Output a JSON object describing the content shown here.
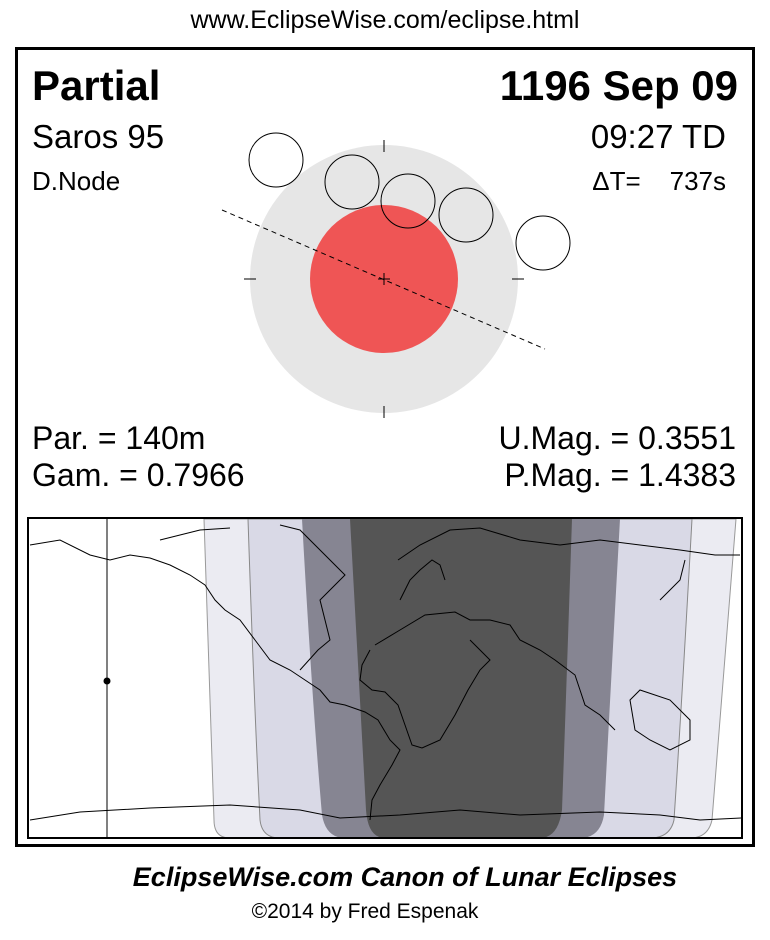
{
  "header_url": "www.EclipseWise.com/eclipse.html",
  "eclipse": {
    "type": "Partial",
    "date": "1196 Sep 09",
    "saros": "Saros  95",
    "time": "09:27 TD",
    "node": "D.Node",
    "delta_t": "ΔT=    737s",
    "partial_duration": "Par. = 140m",
    "gamma": "Gam. = 0.7966",
    "umbral_mag": "U.Mag. = 0.3551",
    "penumbral_mag": "P.Mag. = 1.4383"
  },
  "colors": {
    "penumbra": "#e6e6e6",
    "umbra": "#ef5555",
    "map_total_visibility": "#555555",
    "map_partial_band": "#868592",
    "map_penumbral_band": "#d9d9e6",
    "map_outer_band": "#ebebf2"
  },
  "footer": {
    "canon": "EclipseWise.com Canon of Lunar Eclipses",
    "copyright": "©2014 by Fred Espenak"
  }
}
